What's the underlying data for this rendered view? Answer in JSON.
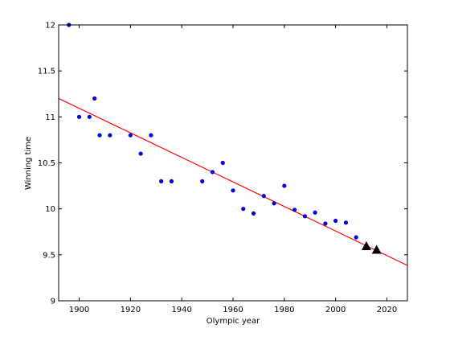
{
  "chart_data": {
    "type": "scatter",
    "xlabel": "Olympic year",
    "ylabel": "Winning time",
    "xlim": [
      1892,
      2028
    ],
    "ylim": [
      9,
      12
    ],
    "xticks": [
      1900,
      1920,
      1940,
      1960,
      1980,
      2000,
      2020
    ],
    "xtick_labels": [
      "1900",
      "1920",
      "1940",
      "1960",
      "1980",
      "2000",
      "2020"
    ],
    "yticks": [
      9,
      9.5,
      10,
      10.5,
      11,
      11.5,
      12
    ],
    "ytick_labels": [
      "9",
      "9.5",
      "10",
      "10.5",
      "11",
      "11.5",
      "12"
    ],
    "grid": false,
    "series": [
      {
        "marker": "circle",
        "color": "#0000ff",
        "points": [
          [
            1896,
            12.0
          ],
          [
            1900,
            11.0
          ],
          [
            1904,
            11.0
          ],
          [
            1906,
            11.2
          ],
          [
            1908,
            10.8
          ],
          [
            1912,
            10.8
          ],
          [
            1920,
            10.8
          ],
          [
            1924,
            10.6
          ],
          [
            1928,
            10.8
          ],
          [
            1932,
            10.3
          ],
          [
            1936,
            10.3
          ],
          [
            1948,
            10.3
          ],
          [
            1952,
            10.4
          ],
          [
            1956,
            10.5
          ],
          [
            1960,
            10.2
          ],
          [
            1964,
            10.0
          ],
          [
            1968,
            9.95
          ],
          [
            1972,
            10.14
          ],
          [
            1976,
            10.06
          ],
          [
            1980,
            10.25
          ],
          [
            1984,
            9.99
          ],
          [
            1988,
            9.92
          ],
          [
            1992,
            9.96
          ],
          [
            1996,
            9.84
          ],
          [
            2000,
            9.87
          ],
          [
            2004,
            9.85
          ],
          [
            2008,
            9.69
          ]
        ]
      },
      {
        "marker": "triangle",
        "color": "#000000",
        "points": [
          [
            2012,
            9.595
          ],
          [
            2016,
            9.555
          ]
        ]
      },
      {
        "type": "line",
        "color": "#ff0000",
        "points": [
          [
            1892,
            11.2
          ],
          [
            2028,
            9.385
          ]
        ]
      }
    ]
  }
}
